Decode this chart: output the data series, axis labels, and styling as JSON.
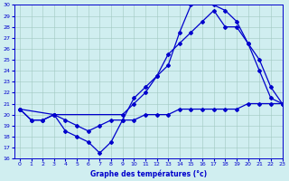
{
  "title": "Graphe des températures (°c)",
  "bg_color": "#d0eef0",
  "line_color": "#0000cc",
  "ylim": [
    16,
    30
  ],
  "xlim": [
    -0.5,
    23
  ],
  "yticks": [
    16,
    17,
    18,
    19,
    20,
    21,
    22,
    23,
    24,
    25,
    26,
    27,
    28,
    29,
    30
  ],
  "xticks": [
    0,
    1,
    2,
    3,
    4,
    5,
    6,
    7,
    8,
    9,
    10,
    11,
    12,
    13,
    14,
    15,
    16,
    17,
    18,
    19,
    20,
    21,
    22,
    23
  ],
  "series1_x": [
    0,
    1,
    2,
    3,
    4,
    5,
    6,
    7,
    8,
    9,
    10,
    11,
    12,
    13,
    14,
    15,
    16,
    17,
    18,
    19,
    20,
    21,
    22,
    23
  ],
  "series1_y": [
    20.5,
    19.5,
    19.5,
    20.0,
    18.5,
    18.0,
    17.5,
    16.5,
    17.5,
    19.5,
    21.5,
    22.5,
    23.5,
    24.5,
    27.5,
    30.0,
    30.5,
    30.0,
    29.5,
    28.5,
    26.5,
    24.0,
    21.5,
    21.0
  ],
  "series2_x": [
    0,
    3,
    9,
    10,
    11,
    12,
    13,
    14,
    15,
    16,
    17,
    18,
    19,
    20,
    21,
    22,
    23
  ],
  "series2_y": [
    20.5,
    20.0,
    20.0,
    21.0,
    22.0,
    23.5,
    25.5,
    26.5,
    27.5,
    28.5,
    29.5,
    28.0,
    28.0,
    26.5,
    25.0,
    22.5,
    21.0
  ],
  "series3_x": [
    0,
    1,
    2,
    3,
    4,
    5,
    6,
    7,
    8,
    9,
    10,
    11,
    12,
    13,
    14,
    15,
    16,
    17,
    18,
    19,
    20,
    21,
    22,
    23
  ],
  "series3_y": [
    20.5,
    19.5,
    19.5,
    20.0,
    19.5,
    19.0,
    18.5,
    19.0,
    19.5,
    19.5,
    19.5,
    20.0,
    20.0,
    20.0,
    20.5,
    20.5,
    20.5,
    20.5,
    20.5,
    20.5,
    21.0,
    21.0,
    21.0,
    21.0
  ]
}
